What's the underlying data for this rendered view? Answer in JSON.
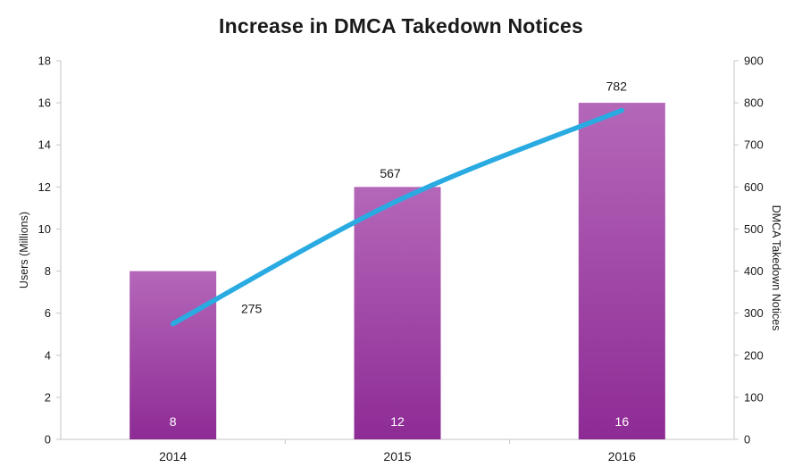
{
  "chart_data": {
    "type": "combo",
    "title": "Increase in DMCA Takedown Notices",
    "categories": [
      "2014",
      "2015",
      "2016"
    ],
    "series": [
      {
        "name": "Users (Millions)",
        "type": "bar",
        "axis": "left",
        "values": [
          8,
          12,
          16
        ]
      },
      {
        "name": "DMCA Takedown Notices",
        "type": "line",
        "axis": "right",
        "values": [
          275,
          567,
          782
        ]
      }
    ],
    "left_axis": {
      "label": "Users (Millions)",
      "min": 0,
      "max": 18,
      "ticks": [
        0,
        2,
        4,
        6,
        8,
        10,
        12,
        14,
        16,
        18
      ]
    },
    "right_axis": {
      "label": "DMCA Takedown Notices",
      "min": 0,
      "max": 900,
      "ticks": [
        0,
        100,
        200,
        300,
        400,
        500,
        600,
        700,
        800,
        900
      ]
    },
    "bar_value_labels": [
      "8",
      "12",
      "16"
    ],
    "line_value_labels": [
      "275",
      "567",
      "782"
    ],
    "legend": "off",
    "grid": "off",
    "colors": {
      "bar_top": "#b467b9",
      "bar_bottom": "#8e2b95",
      "line": "#29abe2",
      "axis": "#c6c6c6",
      "text": "#1a1a1a",
      "bar_label": "#ffffff"
    }
  }
}
